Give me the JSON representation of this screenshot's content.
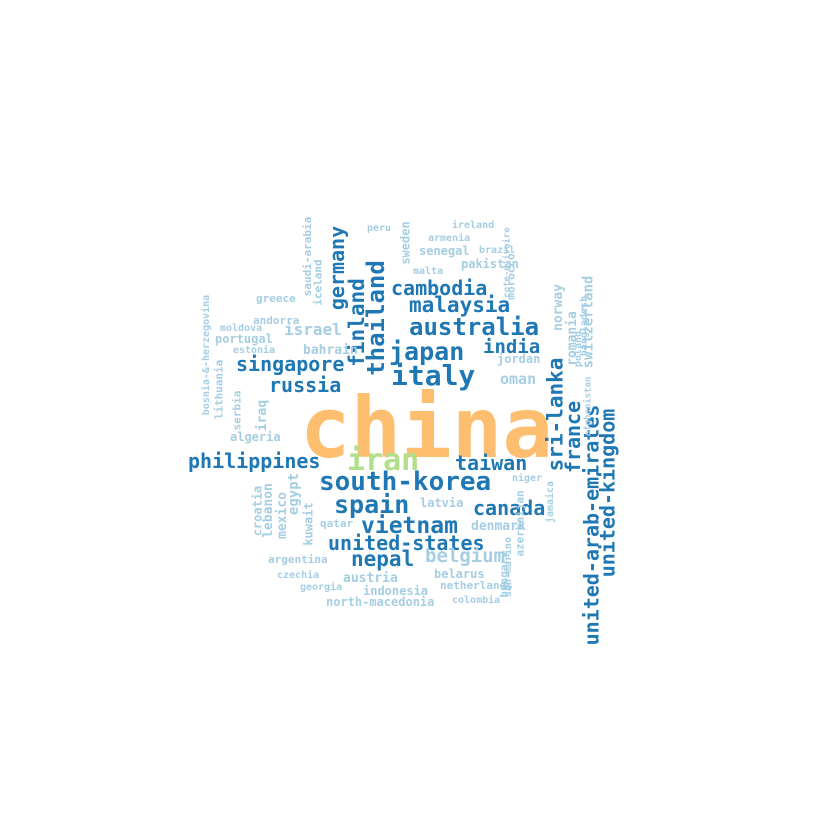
{
  "palette": {
    "orange": "#fdbf6f",
    "green": "#b2df8a",
    "dark": "#1f78b4",
    "light": "#a6cee3"
  },
  "words": [
    {
      "text": "china",
      "color": "orange"
    },
    {
      "text": "iran",
      "color": "green"
    },
    {
      "text": "south-korea",
      "color": "dark"
    },
    {
      "text": "italy",
      "color": "dark"
    },
    {
      "text": "japan",
      "color": "dark"
    },
    {
      "text": "australia",
      "color": "dark"
    },
    {
      "text": "malaysia",
      "color": "dark"
    },
    {
      "text": "cambodia",
      "color": "dark"
    },
    {
      "text": "singapore",
      "color": "dark"
    },
    {
      "text": "russia",
      "color": "dark"
    },
    {
      "text": "india",
      "color": "dark"
    },
    {
      "text": "philippines",
      "color": "dark"
    },
    {
      "text": "taiwan",
      "color": "dark"
    },
    {
      "text": "spain",
      "color": "dark"
    },
    {
      "text": "canada",
      "color": "dark"
    },
    {
      "text": "vietnam",
      "color": "dark"
    },
    {
      "text": "united-states",
      "color": "dark"
    },
    {
      "text": "nepal",
      "color": "dark"
    },
    {
      "text": "belgium",
      "color": "light"
    },
    {
      "text": "thailand",
      "color": "dark"
    },
    {
      "text": "finland",
      "color": "dark"
    },
    {
      "text": "germany",
      "color": "dark"
    },
    {
      "text": "sri-lanka",
      "color": "dark"
    },
    {
      "text": "france",
      "color": "dark"
    },
    {
      "text": "united-kingdom",
      "color": "dark"
    },
    {
      "text": "united-arab-emirates",
      "color": "dark"
    },
    {
      "text": "switzerland",
      "color": "light"
    },
    {
      "text": "romania",
      "color": "light"
    },
    {
      "text": "norway",
      "color": "light"
    },
    {
      "text": "israel",
      "color": "light"
    },
    {
      "text": "oman",
      "color": "light"
    },
    {
      "text": "bahrain",
      "color": "light"
    },
    {
      "text": "jordan",
      "color": "light"
    },
    {
      "text": "egypt",
      "color": "light"
    },
    {
      "text": "mexico",
      "color": "light"
    },
    {
      "text": "lebanon",
      "color": "light"
    },
    {
      "text": "croatia",
      "color": "light"
    },
    {
      "text": "kuwait",
      "color": "light"
    },
    {
      "text": "iraq",
      "color": "light"
    },
    {
      "text": "serbia",
      "color": "light"
    },
    {
      "text": "lithuania",
      "color": "light"
    },
    {
      "text": "bosnia-&-herzegovina",
      "color": "light"
    },
    {
      "text": "saudi-arabia",
      "color": "light"
    },
    {
      "text": "iceland",
      "color": "light"
    },
    {
      "text": "sweden",
      "color": "light"
    },
    {
      "text": "peru",
      "color": "light"
    },
    {
      "text": "ireland",
      "color": "light"
    },
    {
      "text": "armenia",
      "color": "light"
    },
    {
      "text": "senegal",
      "color": "light"
    },
    {
      "text": "brazil",
      "color": "light"
    },
    {
      "text": "pakistan",
      "color": "light"
    },
    {
      "text": "malta",
      "color": "light"
    },
    {
      "text": "greece",
      "color": "light"
    },
    {
      "text": "andorra",
      "color": "light"
    },
    {
      "text": "moldova",
      "color": "light"
    },
    {
      "text": "portugal",
      "color": "light"
    },
    {
      "text": "estonia",
      "color": "light"
    },
    {
      "text": "algeria",
      "color": "light"
    },
    {
      "text": "morocco",
      "color": "light"
    },
    {
      "text": "cote-d'ivoire",
      "color": "light"
    },
    {
      "text": "bangladesh",
      "color": "light"
    },
    {
      "text": "poland",
      "color": "light"
    },
    {
      "text": "afghanistan",
      "color": "light"
    },
    {
      "text": "niger",
      "color": "light"
    },
    {
      "text": "latvia",
      "color": "light"
    },
    {
      "text": "denmark",
      "color": "light"
    },
    {
      "text": "qatar",
      "color": "light"
    },
    {
      "text": "azerbaijan",
      "color": "light"
    },
    {
      "text": "jamaica",
      "color": "light"
    },
    {
      "text": "argentina",
      "color": "light"
    },
    {
      "text": "belarus",
      "color": "light"
    },
    {
      "text": "austria",
      "color": "light"
    },
    {
      "text": "czechia",
      "color": "light"
    },
    {
      "text": "georgia",
      "color": "light"
    },
    {
      "text": "indonesia",
      "color": "light"
    },
    {
      "text": "netherlands",
      "color": "light"
    },
    {
      "text": "north-macedonia",
      "color": "light"
    },
    {
      "text": "colombia",
      "color": "light"
    },
    {
      "text": "hungary",
      "color": "light"
    },
    {
      "text": "san-marino",
      "color": "light"
    }
  ]
}
